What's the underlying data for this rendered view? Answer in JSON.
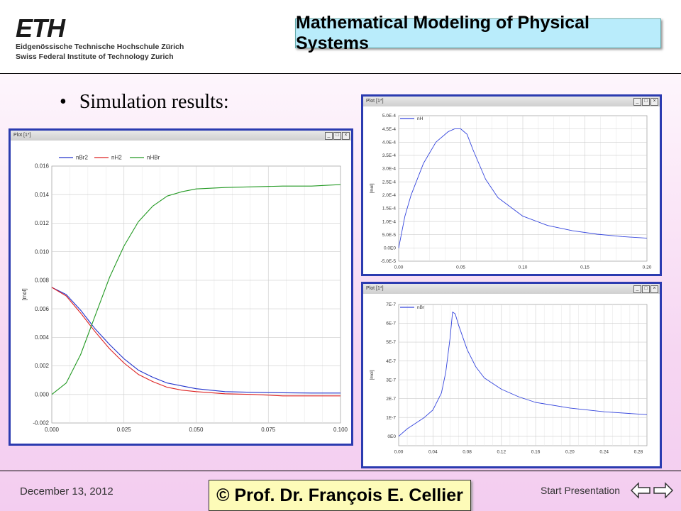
{
  "header": {
    "logo": "ETH",
    "subtitle_1": "Eidgenössische Technische Hochschule Zürich",
    "subtitle_2": "Swiss Federal Institute of Technology Zurich",
    "title": "Mathematical Modeling of Physical Systems"
  },
  "content": {
    "bullet": "Simulation results:"
  },
  "footer": {
    "date": "December 13, 2012",
    "author": "© Prof. Dr. François E. Cellier",
    "start": "Start Presentation"
  },
  "chart_data": [
    {
      "window_title": "Plot [1*]",
      "type": "line",
      "ylabel": "[mol]",
      "xlim": [
        0,
        0.1
      ],
      "ylim": [
        -0.002,
        0.016
      ],
      "xticks": [
        "0.000",
        "0.025",
        "0.050",
        "0.075",
        "0.100"
      ],
      "yticks": [
        "-0.002",
        "0.000",
        "0.002",
        "0.004",
        "0.006",
        "0.008",
        "0.010",
        "0.012",
        "0.014",
        "0.016"
      ],
      "grid": true,
      "legend": "top-center",
      "series": [
        {
          "name": "nBr2",
          "color": "#2233cc",
          "x": [
            0,
            0.005,
            0.01,
            0.015,
            0.02,
            0.025,
            0.03,
            0.035,
            0.04,
            0.045,
            0.05,
            0.06,
            0.07,
            0.08,
            0.09,
            0.1
          ],
          "y": [
            0.0075,
            0.007,
            0.0059,
            0.0046,
            0.0035,
            0.0025,
            0.0017,
            0.0012,
            0.0008,
            0.0006,
            0.0004,
            0.0002,
            0.00015,
            0.00012,
            0.0001,
            0.0001
          ]
        },
        {
          "name": "nH2",
          "color": "#dd2222",
          "x": [
            0,
            0.005,
            0.01,
            0.015,
            0.02,
            0.025,
            0.03,
            0.035,
            0.04,
            0.045,
            0.05,
            0.06,
            0.07,
            0.08,
            0.09,
            0.1
          ],
          "y": [
            0.0075,
            0.0069,
            0.0057,
            0.0044,
            0.0032,
            0.0022,
            0.0014,
            0.0009,
            0.0005,
            0.0003,
            0.0002,
            5e-05,
            0,
            -0.0001,
            -0.0001,
            -0.0001
          ]
        },
        {
          "name": "nHBr",
          "color": "#229922",
          "x": [
            0,
            0.005,
            0.01,
            0.015,
            0.02,
            0.025,
            0.03,
            0.035,
            0.04,
            0.045,
            0.05,
            0.06,
            0.07,
            0.08,
            0.09,
            0.1
          ],
          "y": [
            0,
            0.0008,
            0.0028,
            0.0055,
            0.0082,
            0.0104,
            0.0121,
            0.0132,
            0.0139,
            0.0142,
            0.0144,
            0.0145,
            0.01455,
            0.0146,
            0.0146,
            0.0147
          ]
        }
      ]
    },
    {
      "window_title": "Plot [1*]",
      "type": "line",
      "ylabel": "[mol]",
      "xlim": [
        0,
        0.2
      ],
      "ylim": [
        -5e-05,
        0.0005
      ],
      "xticks": [
        "0.00",
        "0.05",
        "0.10",
        "0.15",
        "0.20"
      ],
      "yticks": [
        "-5.0E-5",
        "0.0E0",
        "5.0E-5",
        "1.0E-4",
        "1.5E-4",
        "2.0E-4",
        "2.5E-4",
        "3.0E-4",
        "3.5E-4",
        "4.0E-4",
        "4.5E-4",
        "5.0E-4"
      ],
      "grid": true,
      "legend": "top-left",
      "series": [
        {
          "name": "nH",
          "color": "#3344dd",
          "x": [
            0,
            0.005,
            0.01,
            0.02,
            0.03,
            0.04,
            0.045,
            0.05,
            0.055,
            0.06,
            0.07,
            0.08,
            0.1,
            0.12,
            0.14,
            0.16,
            0.18,
            0.2
          ],
          "y": [
            0,
            0.00012,
            0.0002,
            0.00032,
            0.0004,
            0.00044,
            0.00045,
            0.00045,
            0.00043,
            0.00037,
            0.00026,
            0.00019,
            0.00012,
            8.5e-05,
            6.5e-05,
            5.2e-05,
            4.3e-05,
            3.7e-05
          ]
        }
      ]
    },
    {
      "window_title": "Plot [1*]",
      "type": "line",
      "ylabel": "[mol]",
      "xlim": [
        0,
        0.29
      ],
      "ylim": [
        -5e-08,
        7e-07
      ],
      "xticks": [
        "0.00",
        "0.04",
        "0.08",
        "0.12",
        "0.16",
        "0.20",
        "0.24",
        "0.28"
      ],
      "yticks": [
        "0E0",
        "1E-7",
        "2E-7",
        "3E-7",
        "4E-7",
        "5E-7",
        "6E-7",
        "7E-7"
      ],
      "grid": true,
      "legend": "top-left",
      "series": [
        {
          "name": "nBr",
          "color": "#3344dd",
          "x": [
            0,
            0.01,
            0.02,
            0.03,
            0.04,
            0.05,
            0.055,
            0.06,
            0.063,
            0.066,
            0.07,
            0.08,
            0.09,
            0.1,
            0.12,
            0.14,
            0.16,
            0.2,
            0.24,
            0.29
          ],
          "y": [
            0,
            4e-08,
            7e-08,
            1e-07,
            1.4e-07,
            2.3e-07,
            3.4e-07,
            5.2e-07,
            6.6e-07,
            6.5e-07,
            5.9e-07,
            4.6e-07,
            3.7e-07,
            3.1e-07,
            2.5e-07,
            2.1e-07,
            1.8e-07,
            1.5e-07,
            1.3e-07,
            1.15e-07
          ]
        }
      ]
    }
  ]
}
